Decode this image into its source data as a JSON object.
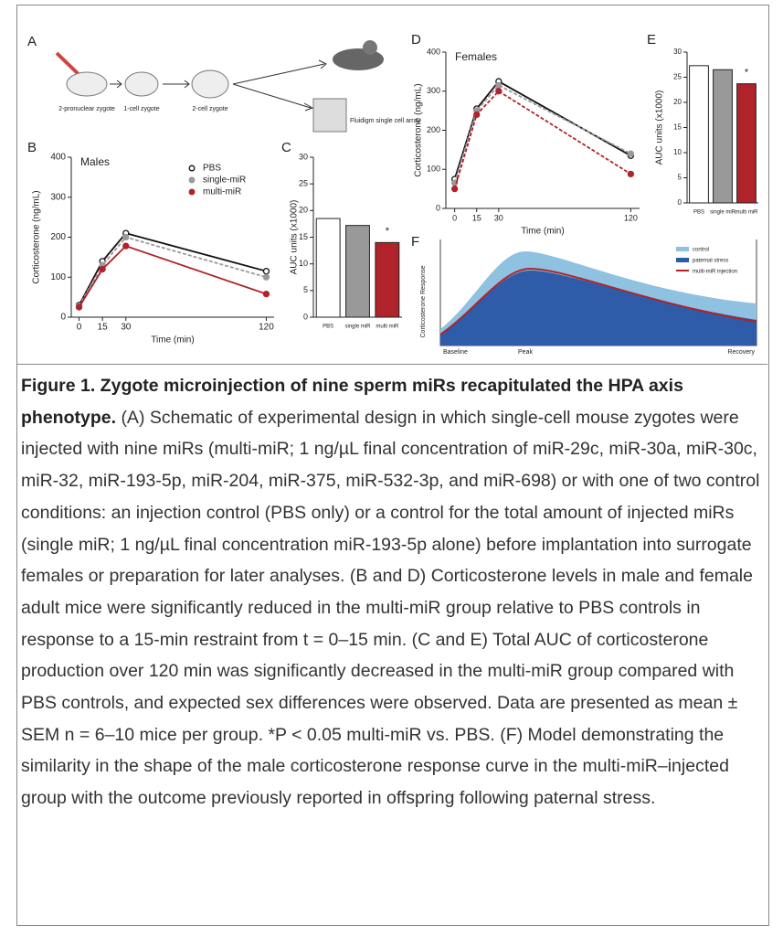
{
  "schematic": {
    "panel_label": "A",
    "labels": [
      "2-pronuclear zygote",
      "1-cell zygote",
      "2-cell zygote",
      "Fluidigm single cell array"
    ]
  },
  "chart_data": [
    {
      "type": "line",
      "panel_label": "B",
      "title": "Males",
      "ylabel": "Corticosterone (ng/mL)",
      "xlabel": "Time (min)",
      "x": [
        0,
        15,
        30,
        120
      ],
      "xlim": [
        -5,
        125
      ],
      "xticks": [
        0,
        15,
        30,
        120
      ],
      "ylim": [
        0,
        400
      ],
      "yticks": [
        0,
        100,
        200,
        300,
        400
      ],
      "legend": "top-right",
      "series": [
        {
          "name": "PBS",
          "color": "#111111",
          "marker": "open",
          "dash": false,
          "values": [
            30,
            140,
            210,
            115
          ]
        },
        {
          "name": "single-miR",
          "color": "#9a9a9a",
          "marker": "filled",
          "dash": true,
          "values": [
            28,
            130,
            200,
            100
          ]
        },
        {
          "name": "multi-miR",
          "color": "#b0232a",
          "marker": "filled",
          "dash": false,
          "values": [
            25,
            120,
            178,
            58
          ]
        }
      ]
    },
    {
      "type": "bar",
      "panel_label": "C",
      "ylabel": "AUC units (x1000)",
      "categories": [
        "PBS",
        "single miR",
        "multi miR"
      ],
      "values": [
        18.5,
        17.2,
        14
      ],
      "colors": [
        "#ffffff",
        "#999999",
        "#b0232a"
      ],
      "ylim": [
        0,
        30
      ],
      "yticks": [
        0,
        5,
        10,
        15,
        20,
        25,
        30
      ],
      "annotation": "*"
    },
    {
      "type": "line",
      "panel_label": "D",
      "title": "Females",
      "ylabel": "Corticosterone (ng/mL)",
      "xlabel": "Time (min)",
      "x": [
        0,
        15,
        30,
        120
      ],
      "xlim": [
        -6,
        126
      ],
      "xticks": [
        0,
        15,
        30,
        120
      ],
      "ylim": [
        0,
        400
      ],
      "yticks": [
        0,
        100,
        200,
        300,
        400
      ],
      "series": [
        {
          "name": "PBS",
          "color": "#111111",
          "marker": "open",
          "dash": false,
          "values": [
            75,
            255,
            325,
            135
          ]
        },
        {
          "name": "single-miR",
          "color": "#9a9a9a",
          "marker": "filled",
          "dash": true,
          "values": [
            65,
            250,
            315,
            140
          ]
        },
        {
          "name": "multi-miR",
          "color": "#b0232a",
          "marker": "filled",
          "dash": true,
          "values": [
            50,
            240,
            300,
            88
          ]
        }
      ]
    },
    {
      "type": "bar",
      "panel_label": "E",
      "ylabel": "AUC units (x1000)",
      "categories": [
        "PBS",
        "single miR",
        "multi miR"
      ],
      "values": [
        27.3,
        26.5,
        23.7
      ],
      "colors": [
        "#ffffff",
        "#999999",
        "#b0232a"
      ],
      "ylim": [
        0,
        30
      ],
      "yticks": [
        0,
        5,
        10,
        15,
        20,
        25,
        30
      ],
      "annotation": "*"
    }
  ],
  "model": {
    "panel_label": "F",
    "ylabel": "Corticosterone Response",
    "xlabels": [
      "Baseline",
      "Peak",
      "Recovery"
    ],
    "legend": [
      "control",
      "paternal stress",
      "multi-miR injection"
    ]
  },
  "caption": {
    "title": "Figure 1. Zygote microinjection of nine sperm miRs recapitulated the HPA axis phenotype.",
    "text": "(A) Schematic of experimental design in which single-cell mouse zygotes were injected with nine miRs (multi-miR; 1 ng/µL final concentration of miR-29c, miR-30a, miR-30c, miR-32, miR-193-5p, miR-204, miR-375, miR-532-3p, and miR-698) or with one of two control conditions: an injection control (PBS only) or a control for the total amount of injected miRs (single miR; 1 ng/µL final concentration miR-193-5p alone) before implantation into surrogate females or preparation for later analyses. (B and D) Corticosterone levels in male and female adult mice were significantly reduced in the multi-miR group relative to PBS controls in response to a 15-min restraint from t = 0–15 min. (C and E) Total AUC of corticosterone production over 120 min was significantly decreased in the multi-miR group compared with PBS controls, and expected sex differences were observed. Data are presented as mean ± SEM n = 6–10 mice per group. *P < 0.05 multi-miR vs. PBS. (F) Model demonstrating the similarity in the shape of the male corticosterone response curve in the multi-miR–injected group with the outcome previously reported in offspring following paternal stress."
  }
}
